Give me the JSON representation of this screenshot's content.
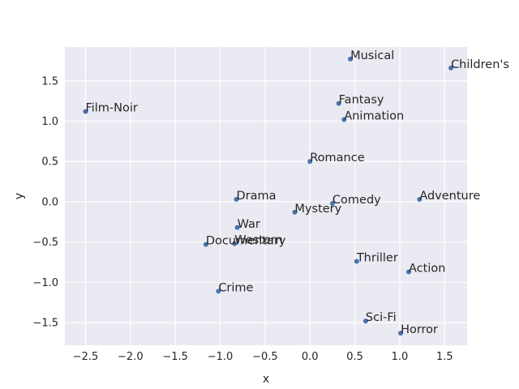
{
  "chart_data": {
    "type": "scatter",
    "title": "",
    "xlabel": "x",
    "ylabel": "y",
    "xlim": [
      -2.73,
      1.75
    ],
    "ylim": [
      -1.78,
      1.92
    ],
    "xticks": [
      -2.5,
      -2.0,
      -1.5,
      -1.0,
      -0.5,
      0.0,
      0.5,
      1.0,
      1.5
    ],
    "yticks": [
      -1.5,
      -1.0,
      -0.5,
      0.0,
      0.5,
      1.0,
      1.5
    ],
    "grid": true,
    "background_color": "#eaeaf2",
    "marker_color": "#4c72b0",
    "points": [
      {
        "label": "Musical",
        "x": 0.45,
        "y": 1.77
      },
      {
        "label": "Children's",
        "x": 1.57,
        "y": 1.66
      },
      {
        "label": "Film-Noir",
        "x": -2.5,
        "y": 1.12
      },
      {
        "label": "Fantasy",
        "x": 0.32,
        "y": 1.22
      },
      {
        "label": "Animation",
        "x": 0.38,
        "y": 1.02
      },
      {
        "label": "Romance",
        "x": 0.0,
        "y": 0.5
      },
      {
        "label": "Drama",
        "x": -0.82,
        "y": 0.03
      },
      {
        "label": "Comedy",
        "x": 0.25,
        "y": -0.02
      },
      {
        "label": "Adventure",
        "x": 1.22,
        "y": 0.03
      },
      {
        "label": "Mystery",
        "x": -0.17,
        "y": -0.13
      },
      {
        "label": "War",
        "x": -0.81,
        "y": -0.32
      },
      {
        "label": "Documentary",
        "x": -1.16,
        "y": -0.53
      },
      {
        "label": "Western",
        "x": -0.84,
        "y": -0.52
      },
      {
        "label": "Thriller",
        "x": 0.52,
        "y": -0.74
      },
      {
        "label": "Action",
        "x": 1.1,
        "y": -0.87
      },
      {
        "label": "Crime",
        "x": -1.02,
        "y": -1.11
      },
      {
        "label": "Sci-Fi",
        "x": 0.62,
        "y": -1.48
      },
      {
        "label": "Horror",
        "x": 1.01,
        "y": -1.63
      }
    ]
  }
}
